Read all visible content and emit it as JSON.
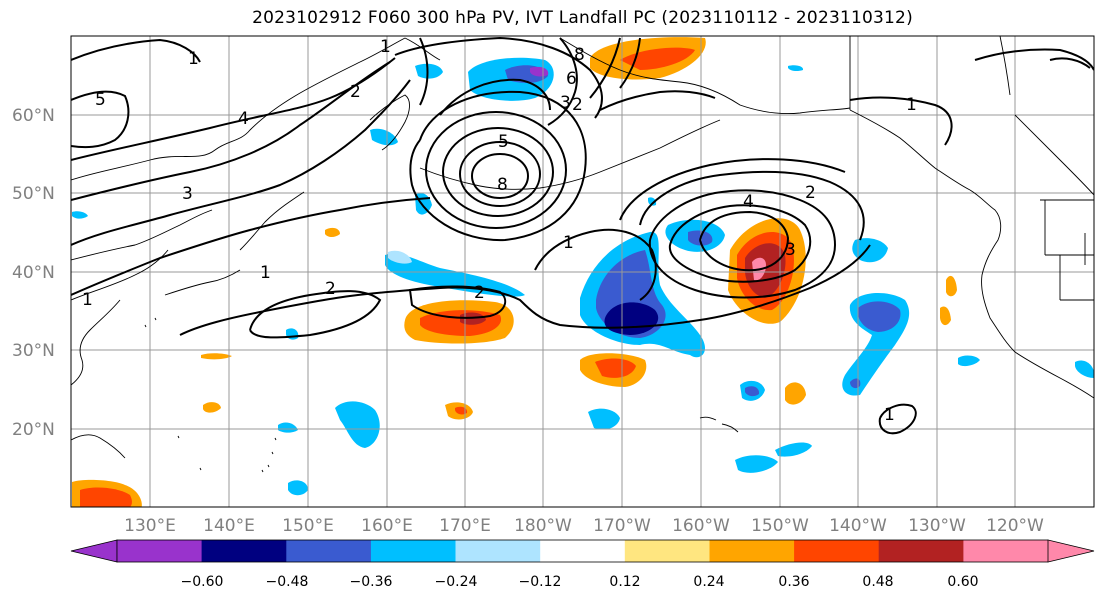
{
  "title": "2023102912 F060 300 hPa PV, IVT Landfall PC (2023110112 - 2023110312)",
  "map": {
    "lat_labels": [
      "60°N",
      "50°N",
      "40°N",
      "30°N",
      "20°N"
    ],
    "lon_labels": [
      "130°E",
      "140°E",
      "150°E",
      "160°E",
      "170°E",
      "180°W",
      "170°W",
      "160°W",
      "150°W",
      "140°W",
      "130°W",
      "120°W"
    ],
    "contour_labels": [
      "1",
      "1",
      "1",
      "1",
      "1",
      "1",
      "1",
      "2",
      "2",
      "2",
      "2",
      "2",
      "3",
      "3",
      "3",
      "4",
      "4",
      "5",
      "5",
      "6",
      "8",
      "8"
    ]
  },
  "colorbar": {
    "ticks": [
      "−0.60",
      "−0.48",
      "−0.36",
      "−0.24",
      "−0.12",
      "0.12",
      "0.24",
      "0.36",
      "0.48",
      "0.60"
    ],
    "colors": [
      "#9933cc",
      "#000080",
      "#3a5bd0",
      "#00bfff",
      "#aee4ff",
      "#ffffff",
      "#ffe680",
      "#ffa500",
      "#ff4500",
      "#b22222",
      "#ff88aa",
      "#ff88aa"
    ]
  }
}
